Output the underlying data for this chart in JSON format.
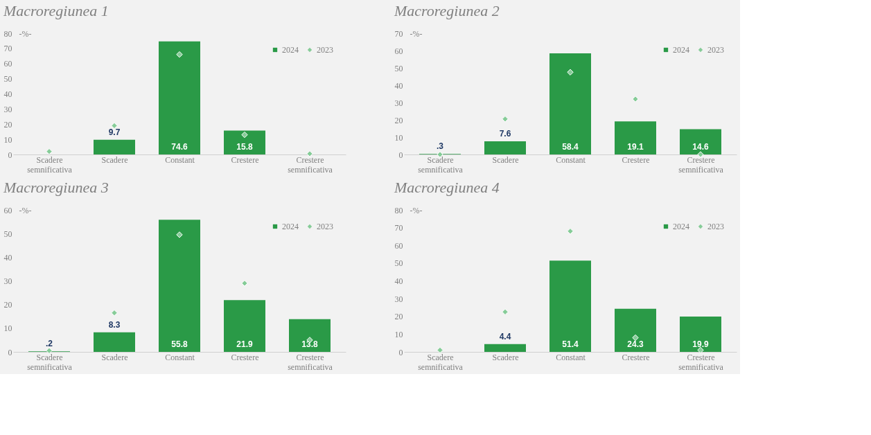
{
  "chart_data": [
    {
      "type": "bar",
      "title": "Macroregiunea 1",
      "ylabel": "-%-",
      "categories": [
        "Scadere semnificativa",
        "Scadere",
        "Constant",
        "Crestere",
        "Crestere semnificativa"
      ],
      "ylim": [
        0,
        80
      ],
      "yticks": [
        0,
        10,
        20,
        30,
        40,
        50,
        60,
        70,
        80
      ],
      "grid": false,
      "legend": "top right",
      "series": [
        {
          "name": "2024",
          "type": "bar",
          "color": "#2a9a47",
          "values": [
            0,
            9.7,
            74.6,
            15.8,
            0
          ],
          "value_labels": [
            null,
            "9.7",
            "74.6",
            "15.8",
            null
          ]
        },
        {
          "name": "2023",
          "type": "scatter",
          "marker": "diamond",
          "color": "#86cc98",
          "values": [
            2,
            19,
            66,
            13,
            0.5
          ]
        }
      ]
    },
    {
      "type": "bar",
      "title": "Macroregiunea 2",
      "ylabel": "-%-",
      "categories": [
        "Scadere semnificativa",
        "Scadere",
        "Constant",
        "Crestere",
        "Crestere semnificativa"
      ],
      "ylim": [
        0,
        70
      ],
      "yticks": [
        0,
        10,
        20,
        30,
        40,
        50,
        60,
        70
      ],
      "grid": false,
      "legend": "top right",
      "series": [
        {
          "name": "2024",
          "type": "bar",
          "color": "#2a9a47",
          "values": [
            0.3,
            7.6,
            58.4,
            19.1,
            14.6
          ],
          "value_labels": [
            ".3",
            "7.6",
            "58.4",
            "19.1",
            "14.6"
          ]
        },
        {
          "name": "2023",
          "type": "scatter",
          "marker": "diamond",
          "color": "#86cc98",
          "values": [
            0,
            20.5,
            47.5,
            32,
            0
          ]
        }
      ]
    },
    {
      "type": "bar",
      "title": "Macroregiunea 3",
      "ylabel": "-%-",
      "categories": [
        "Scadere semnificativa",
        "Scadere",
        "Constant",
        "Crestere",
        "Crestere semnificativa"
      ],
      "ylim": [
        0,
        60
      ],
      "yticks": [
        0,
        10,
        20,
        30,
        40,
        50,
        60
      ],
      "grid": false,
      "legend": "top right",
      "series": [
        {
          "name": "2024",
          "type": "bar",
          "color": "#2a9a47",
          "values": [
            0.2,
            8.3,
            55.8,
            21.9,
            13.8
          ],
          "value_labels": [
            ".2",
            "8.3",
            "55.8",
            "21.9",
            "13.8"
          ]
        },
        {
          "name": "2023",
          "type": "scatter",
          "marker": "diamond",
          "color": "#86cc98",
          "values": [
            0.5,
            16.5,
            49.5,
            29,
            5
          ]
        }
      ]
    },
    {
      "type": "bar",
      "title": "Macroregiunea 4",
      "ylabel": "-%-",
      "categories": [
        "Scadere semnificativa",
        "Scadere",
        "Constant",
        "Crestere",
        "Crestere semnificativa"
      ],
      "ylim": [
        0,
        80
      ],
      "yticks": [
        0,
        10,
        20,
        30,
        40,
        50,
        60,
        70,
        80
      ],
      "grid": false,
      "legend": "top right",
      "series": [
        {
          "name": "2024",
          "type": "bar",
          "color": "#2a9a47",
          "values": [
            0,
            4.4,
            51.4,
            24.3,
            19.9
          ],
          "value_labels": [
            null,
            "4.4",
            "51.4",
            "24.3",
            "19.9"
          ]
        },
        {
          "name": "2023",
          "type": "scatter",
          "marker": "diamond",
          "color": "#86cc98",
          "values": [
            1,
            22.5,
            68,
            8,
            1
          ]
        }
      ]
    }
  ]
}
